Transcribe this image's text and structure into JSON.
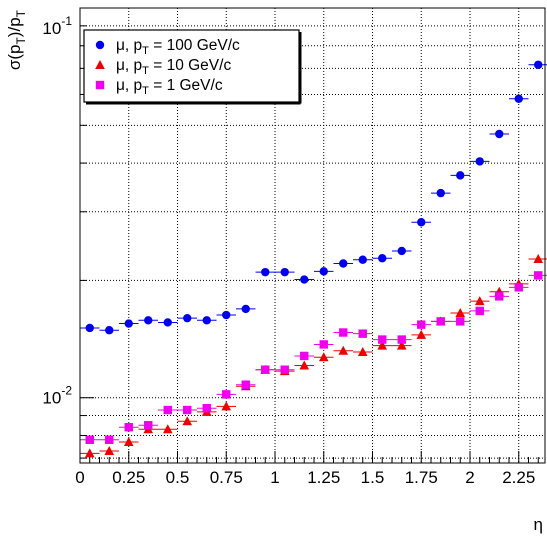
{
  "chart_data": {
    "type": "scatter",
    "title": "",
    "xlabel": "η",
    "ylabel": {
      "base": "σ(p",
      "sub1": "T",
      "mid": ")/p",
      "sub2": "T"
    },
    "xlim": [
      0,
      2.4
    ],
    "ylim": [
      0.0068,
      0.1
    ],
    "y_scale": "log",
    "grid": true,
    "legend_position": "top-left",
    "x_ticks": [
      {
        "v": 0,
        "label": "0"
      },
      {
        "v": 0.25,
        "label": "0.25"
      },
      {
        "v": 0.5,
        "label": "0.5"
      },
      {
        "v": 0.75,
        "label": "0.75"
      },
      {
        "v": 1,
        "label": "1"
      },
      {
        "v": 1.25,
        "label": "1.25"
      },
      {
        "v": 1.5,
        "label": "1.5"
      },
      {
        "v": 1.75,
        "label": "1.75"
      },
      {
        "v": 2,
        "label": "2"
      },
      {
        "v": 2.25,
        "label": "2.25"
      }
    ],
    "y_major_ticks": [
      {
        "v": 0.01,
        "base": "10",
        "exp": "-2"
      },
      {
        "v": 0.1,
        "base": "10",
        "exp": "-1"
      }
    ],
    "x": [
      0.05,
      0.15,
      0.25,
      0.35,
      0.45,
      0.55,
      0.65,
      0.75,
      0.85,
      0.95,
      1.05,
      1.15,
      1.25,
      1.35,
      1.45,
      1.55,
      1.65,
      1.75,
      1.85,
      1.95,
      2.05,
      2.15,
      2.25,
      2.35
    ],
    "series": [
      {
        "name": "μ, p_T = 100 GeV/c",
        "legend": {
          "pre": "μ, p",
          "sub": "T",
          "post": " = 100 GeV/c"
        },
        "marker": "circle",
        "color": "#0000ee",
        "values": [
          0.0151,
          0.0149,
          0.0155,
          0.0158,
          0.0156,
          0.016,
          0.0158,
          0.0163,
          0.0169,
          0.021,
          0.021,
          0.0201,
          0.0211,
          0.0221,
          0.0226,
          0.0228,
          0.0238,
          0.0282,
          0.0335,
          0.0372,
          0.0404,
          0.0475,
          0.0585,
          0.0715
        ]
      },
      {
        "name": "μ, p_T = 10 GeV/c",
        "legend": {
          "pre": "μ, p",
          "sub": "T",
          "post": " = 10 GeV/c"
        },
        "marker": "triangle",
        "color": "#ee0000",
        "values": [
          0.0072,
          0.0073,
          0.0077,
          0.0083,
          0.0083,
          0.0087,
          0.0092,
          0.0095,
          0.0107,
          0.0118,
          0.0117,
          0.0121,
          0.0127,
          0.0132,
          0.0131,
          0.0136,
          0.0136,
          0.0145,
          0.0157,
          0.0165,
          0.0177,
          0.0187,
          0.0196,
          0.0227
        ]
      },
      {
        "name": "μ, p_T = 1 GeV/c",
        "legend": {
          "pre": "μ, p",
          "sub": "T",
          "post": " = 1 GeV/c"
        },
        "marker": "square",
        "color": "#ee00ee",
        "values": [
          0.0078,
          0.0078,
          0.0084,
          0.0085,
          0.0093,
          0.0093,
          0.0094,
          0.0102,
          0.0108,
          0.0118,
          0.0118,
          0.0128,
          0.0137,
          0.0147,
          0.0146,
          0.0141,
          0.0141,
          0.0154,
          0.0157,
          0.0157,
          0.0167,
          0.0182,
          0.0192,
          0.0206
        ]
      }
    ]
  }
}
